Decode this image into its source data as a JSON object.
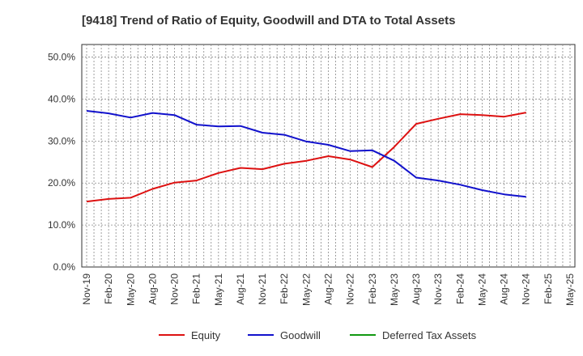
{
  "chart_data": {
    "type": "line",
    "title": "[9418]  Trend of Ratio of Equity, Goodwill and DTA to Total Assets",
    "xlabel": "",
    "ylabel": "",
    "x": [
      "Nov-19",
      "Feb-20",
      "May-20",
      "Aug-20",
      "Nov-20",
      "Feb-21",
      "May-21",
      "Aug-21",
      "Nov-21",
      "Feb-22",
      "May-22",
      "Aug-22",
      "Nov-22",
      "Feb-23",
      "May-23",
      "Aug-23",
      "Nov-23",
      "Feb-24",
      "May-24",
      "Aug-24",
      "Nov-24",
      "Feb-25",
      "May-25"
    ],
    "y_ticks": [
      "0.0%",
      "10.0%",
      "20.0%",
      "30.0%",
      "40.0%",
      "50.0%"
    ],
    "ylim": [
      0,
      53
    ],
    "grid": true,
    "legend_position": "bottom",
    "series": [
      {
        "name": "Equity",
        "color": "#dd1111",
        "values": [
          15.6,
          16.2,
          16.5,
          18.6,
          20.1,
          20.6,
          22.4,
          23.6,
          23.3,
          24.6,
          25.3,
          26.4,
          25.6,
          23.8,
          28.6,
          34.1,
          35.3,
          36.4,
          36.2,
          35.8,
          36.8,
          null,
          null
        ]
      },
      {
        "name": "Goodwill",
        "color": "#1111cc",
        "values": [
          37.2,
          36.6,
          35.6,
          36.7,
          36.2,
          33.9,
          33.5,
          33.6,
          32.0,
          31.5,
          29.9,
          29.1,
          27.6,
          27.8,
          25.3,
          21.3,
          20.6,
          19.6,
          18.3,
          17.3,
          16.7,
          null,
          null
        ]
      },
      {
        "name": "Deferred Tax Assets",
        "color": "#119911",
        "values": [
          null,
          null,
          null,
          null,
          null,
          null,
          null,
          null,
          null,
          null,
          null,
          null,
          null,
          null,
          null,
          null,
          null,
          null,
          null,
          null,
          null,
          null,
          null
        ]
      }
    ]
  }
}
